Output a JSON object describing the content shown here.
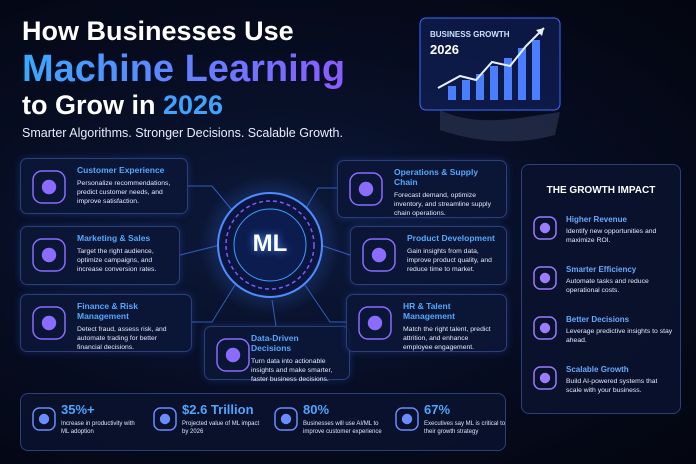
{
  "header": {
    "title_line1": "How Businesses Use",
    "title_line2": "Machine Learning",
    "title_line3": "to Grow in",
    "title_year": "2026",
    "subtitle": "Smarter Algorithms. Stronger Decisions. Scalable Growth."
  },
  "hero_chart": {
    "label": "BUSINESS GROWTH",
    "year": "2026"
  },
  "center": {
    "label": "ML"
  },
  "cards": [
    {
      "title": "Customer Experience",
      "text": "Personalize recommendations, predict customer needs, and improve satisfaction."
    },
    {
      "title": "Marketing & Sales",
      "text": "Target the right audience, optimize campaigns, and increase conversion rates."
    },
    {
      "title": "Finance & Risk Management",
      "text": "Detect fraud, assess risk, and automate trading for better financial decisions."
    },
    {
      "title": "Data-Driven Decisions",
      "text": "Turn data into actionable insights and make smarter, faster business decisions."
    },
    {
      "title": "Operations & Supply Chain",
      "text": "Forecast demand, optimize inventory, and streamline supply chain operations."
    },
    {
      "title": "Product Development",
      "text": "Gain insights from data, improve product quality, and reduce time to market."
    },
    {
      "title": "HR & Talent Management",
      "text": "Match the right talent, predict attrition, and enhance employee engagement."
    }
  ],
  "growth_impact": {
    "title": "THE GROWTH IMPACT",
    "items": [
      {
        "title": "Higher Revenue",
        "text": "Identify new opportunities and maximize ROI."
      },
      {
        "title": "Smarter Efficiency",
        "text": "Automate tasks and reduce operational costs."
      },
      {
        "title": "Better Decisions",
        "text": "Leverage predictive insights to stay ahead."
      },
      {
        "title": "Scalable Growth",
        "text": "Build AI-powered systems that scale with your business."
      }
    ]
  },
  "stats": [
    {
      "value": "35%+",
      "text": "Increase in productivity with ML adoption"
    },
    {
      "value": "$2.6 Trillion",
      "text": "Projected value of ML impact by 2026"
    },
    {
      "value": "80%",
      "text": "Businesses will use AI/ML to improve customer experience"
    },
    {
      "value": "67%",
      "text": "Executives say ML is critical to their growth strategy"
    }
  ]
}
